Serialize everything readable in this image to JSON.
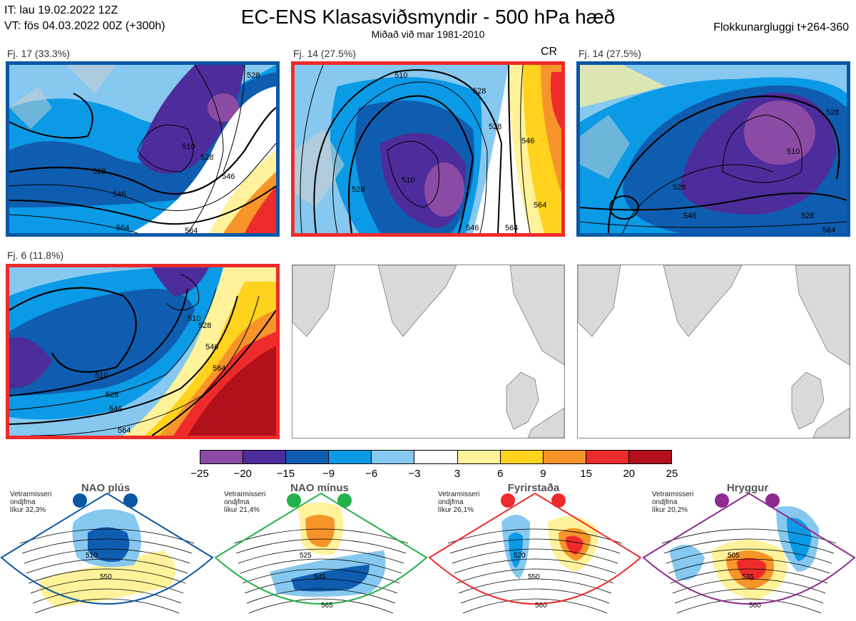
{
  "header": {
    "it_line": "IT: lau 19.02.2022 12Z",
    "vt_line": "VT: fös 04.03.2022 00Z  (+300h)",
    "title": "EC-ENS Klasasviðsmyndir - 500 hPa hæð",
    "subtitle": "Miðað við mar 1981-2010",
    "window": "Flokkunargluggi t+264-360"
  },
  "clusters": [
    {
      "label": "Fj. 17 (33.3%)",
      "border_color": "#0a57a6",
      "tag": ""
    },
    {
      "label": "Fj. 14 (27.5%)",
      "border_color": "#ee2b2b",
      "tag": "CR"
    },
    {
      "label": "Fj. 14 (27.5%)",
      "border_color": "#0a57a6",
      "tag": ""
    },
    {
      "label": "Fj. 6 (11.8%)",
      "border_color": "#ee2b2b",
      "tag": ""
    }
  ],
  "contour_labels": {
    "c1": [
      "528",
      "546",
      "564",
      "564",
      "528",
      "546",
      "510",
      "528"
    ],
    "c2": [
      "510",
      "528",
      "510",
      "528",
      "546",
      "564",
      "528",
      "546",
      "564"
    ],
    "c3": [
      "528",
      "546",
      "510",
      "528",
      "528",
      "564"
    ],
    "c4": [
      "510",
      "528",
      "546",
      "564",
      "510",
      "528",
      "546",
      "564"
    ]
  },
  "colorbar": {
    "colors": [
      "#8b4ba5",
      "#4d2c9b",
      "#0f5db0",
      "#0b9ae6",
      "#86c8ef",
      "#ffffff",
      "#fff29a",
      "#ffd21e",
      "#f7942a",
      "#ee2b2b",
      "#b2101a"
    ],
    "labels": [
      "−25",
      "−20",
      "−15",
      "−9",
      "−6",
      "−3",
      "3",
      "6",
      "9",
      "15",
      "20",
      "25"
    ]
  },
  "regimes": [
    {
      "title": "NAO plús",
      "info": [
        "Vetrarmisseri",
        "ondjfma",
        "líkur 32,3%"
      ],
      "color": "#0a57a6",
      "contours": [
        "510",
        "550"
      ]
    },
    {
      "title": "NAO mínus",
      "info": [
        "Vetrarmisseri",
        "ondjfma",
        "líkur 21,4%"
      ],
      "color": "#24b04a",
      "contours": [
        "525",
        "545",
        "565"
      ]
    },
    {
      "title": "Fyrirstaða",
      "info": [
        "Vetrarmisseri",
        "ondjfma",
        "líkur 26,1%"
      ],
      "color": "#ee2b2b",
      "contours": [
        "520",
        "550",
        "560"
      ]
    },
    {
      "title": "Hryggur",
      "info": [
        "Vetrarmisseri",
        "ondjfma",
        "líkur 20,2%"
      ],
      "color": "#8e2a91",
      "contours": [
        "505",
        "535",
        "560"
      ]
    }
  ]
}
